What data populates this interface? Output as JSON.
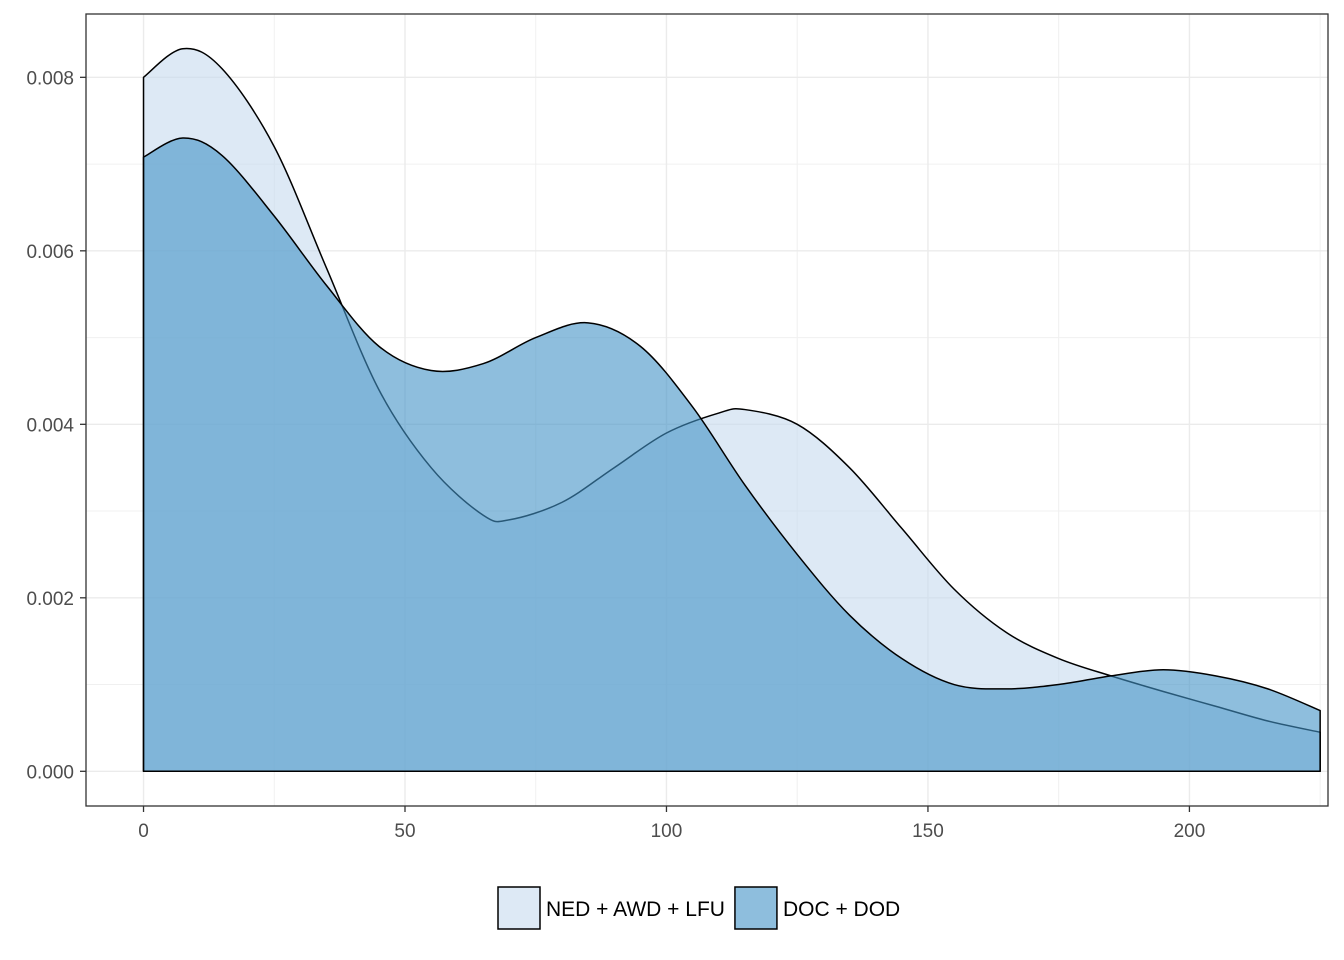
{
  "chart_data": {
    "type": "area",
    "title": "",
    "xlabel": "",
    "ylabel": "",
    "xlim": [
      -11,
      226.5
    ],
    "ylim": [
      -0.0004,
      0.00873
    ],
    "x_ticks": [
      0,
      50,
      100,
      150,
      200
    ],
    "y_ticks": [
      0.0,
      0.002,
      0.004,
      0.006,
      0.008
    ],
    "x_tick_labels": [
      "0",
      "50",
      "100",
      "150",
      "200"
    ],
    "y_tick_labels": [
      "0.000",
      "0.002",
      "0.004",
      "0.006",
      "0.008"
    ],
    "grid": true,
    "legend_position": "bottom",
    "series": [
      {
        "name": "NED + AWD + LFU",
        "color": "#c6dbef",
        "x": [
          0,
          7.5,
          15,
          25,
          35,
          45,
          55,
          65,
          70,
          80,
          90,
          100,
          110,
          115,
          125,
          135,
          145,
          155,
          165,
          175,
          185,
          195,
          205,
          215,
          225
        ],
        "y": [
          0.008,
          0.00833,
          0.0081,
          0.0072,
          0.0058,
          0.0044,
          0.0035,
          0.00295,
          0.0029,
          0.0031,
          0.0035,
          0.0039,
          0.00413,
          0.00417,
          0.004,
          0.0035,
          0.0028,
          0.0021,
          0.0016,
          0.0013,
          0.0011,
          0.00092,
          0.00075,
          0.00058,
          0.00045
        ]
      },
      {
        "name": "DOC + DOD",
        "color": "#4292c6",
        "x": [
          0,
          7.5,
          15,
          25,
          35,
          45,
          55,
          65,
          75,
          85,
          95,
          105,
          115,
          125,
          135,
          145,
          155,
          165,
          175,
          185,
          195,
          205,
          215,
          225
        ],
        "y": [
          0.00708,
          0.0073,
          0.0071,
          0.0064,
          0.0056,
          0.0049,
          0.00462,
          0.0047,
          0.005,
          0.00517,
          0.0049,
          0.0042,
          0.0033,
          0.0025,
          0.0018,
          0.0013,
          0.001,
          0.00095,
          0.001,
          0.0011,
          0.00117,
          0.0011,
          0.00095,
          0.0007
        ]
      }
    ]
  }
}
